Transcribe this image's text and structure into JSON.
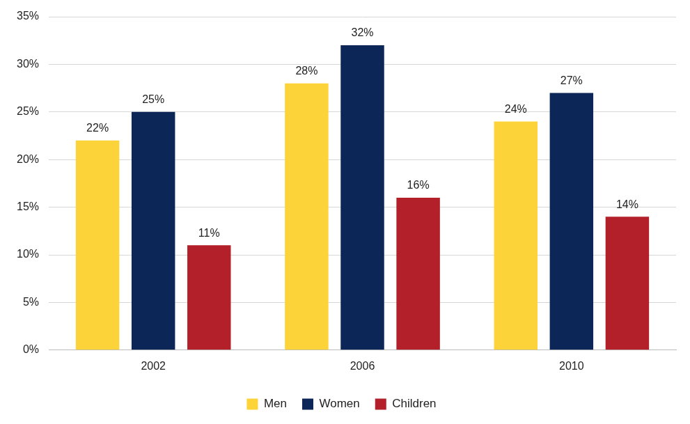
{
  "chart_data": {
    "type": "bar",
    "categories": [
      "2002",
      "2006",
      "2010"
    ],
    "series": [
      {
        "name": "Men",
        "color": "#FDD33A",
        "values": [
          22,
          28,
          24
        ],
        "value_labels": [
          "22%",
          "28%",
          "24%"
        ]
      },
      {
        "name": "Women",
        "color": "#0C2757",
        "values": [
          25,
          32,
          27
        ],
        "value_labels": [
          "25%",
          "32%",
          "27%"
        ]
      },
      {
        "name": "Children",
        "color": "#B3202A",
        "values": [
          11,
          16,
          14
        ],
        "value_labels": [
          "11%",
          "16%",
          "14%"
        ]
      }
    ],
    "ylim": [
      0,
      35
    ],
    "yticks": [
      {
        "value": 0,
        "label": "0%"
      },
      {
        "value": 5,
        "label": "5%"
      },
      {
        "value": 10,
        "label": "10%"
      },
      {
        "value": 15,
        "label": "15%"
      },
      {
        "value": 20,
        "label": "20%"
      },
      {
        "value": 25,
        "label": "25%"
      },
      {
        "value": 30,
        "label": "30%"
      },
      {
        "value": 35,
        "label": "35%"
      }
    ],
    "grid": true,
    "legend": "bottom",
    "data_labels": true
  }
}
